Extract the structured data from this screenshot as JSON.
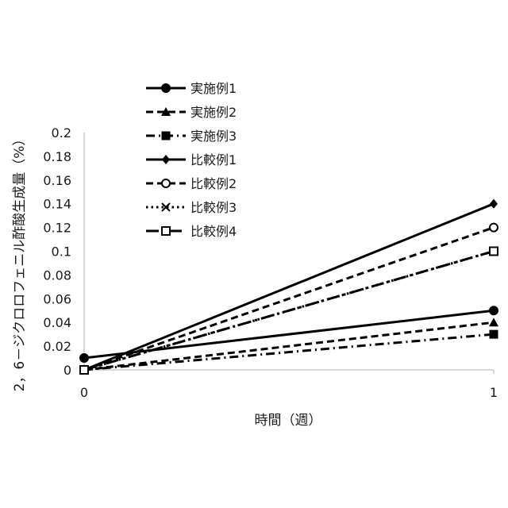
{
  "chart_data": {
    "type": "line",
    "title": "",
    "xlabel": "時間（週）",
    "ylabel": "2，6－ジクロロフェニル酢酸生成量（%）",
    "x": [
      0,
      1
    ],
    "x_ticks": [
      "0",
      "1"
    ],
    "ylim": [
      0,
      0.2
    ],
    "y_ticks": [
      "0",
      "0.02",
      "0.04",
      "0.06",
      "0.08",
      "0.1",
      "0.12",
      "0.14",
      "0.16",
      "0.18",
      "0.2"
    ],
    "grid": false,
    "legend_position": "top-left",
    "series": [
      {
        "name": "実施例1",
        "values": [
          0.01,
          0.05
        ],
        "dash": "solid",
        "marker": "filled-circle"
      },
      {
        "name": "実施例2",
        "values": [
          0,
          0.04
        ],
        "dash": "dash",
        "marker": "filled-triangle"
      },
      {
        "name": "実施例3",
        "values": [
          0,
          0.03
        ],
        "dash": "dash-dot",
        "marker": "filled-square"
      },
      {
        "name": "比較例1",
        "values": [
          0,
          0.14
        ],
        "dash": "solid",
        "marker": "filled-diamond"
      },
      {
        "name": "比較例2",
        "values": [
          0,
          0.12
        ],
        "dash": "dash",
        "marker": "open-circle"
      },
      {
        "name": "比較例3",
        "values": [
          0,
          0.1
        ],
        "dash": "dot",
        "marker": "x"
      },
      {
        "name": "比較例4",
        "values": [
          0,
          0.1
        ],
        "dash": "long-dash-dot",
        "marker": "open-square"
      }
    ]
  }
}
